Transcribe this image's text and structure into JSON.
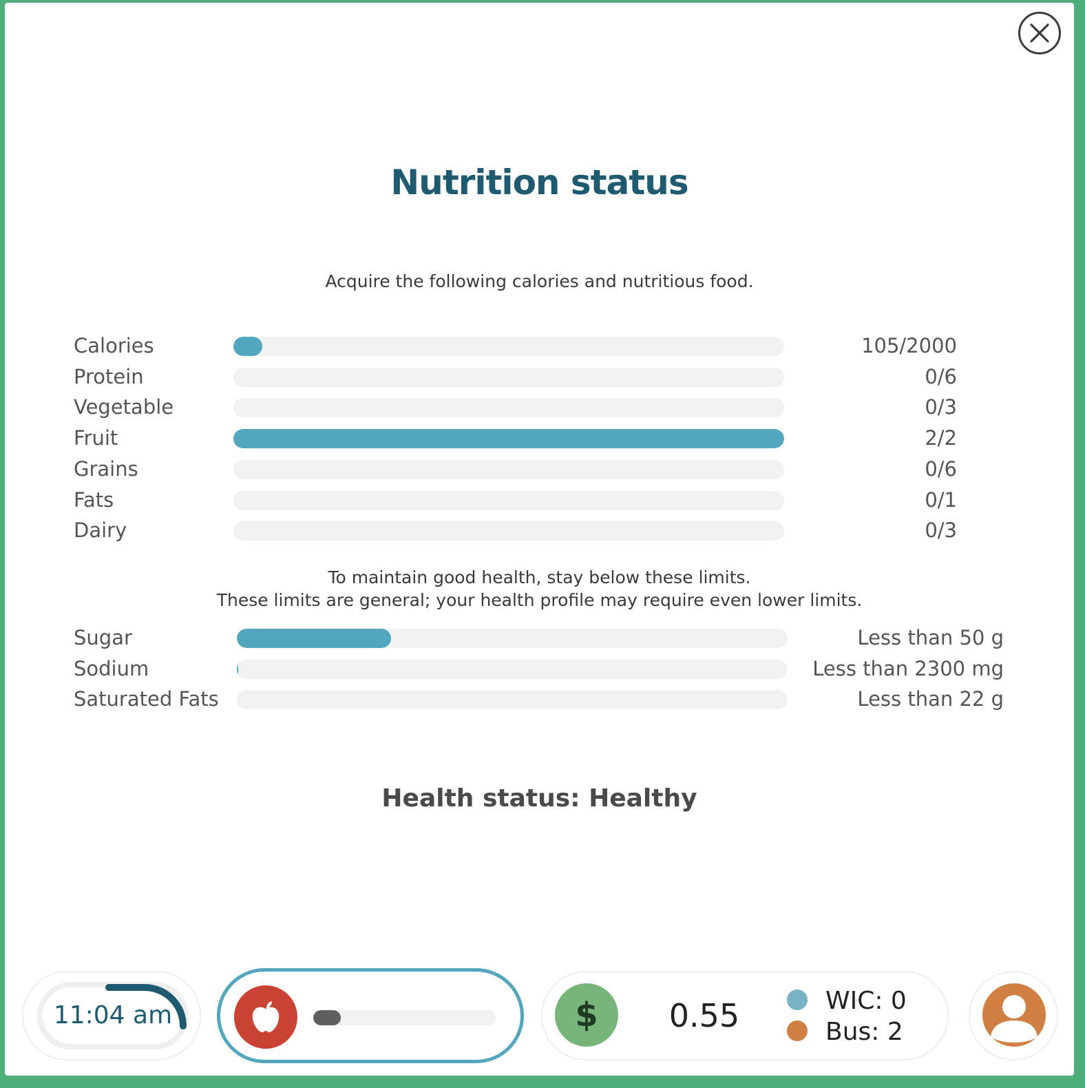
{
  "modal": {
    "title": "Nutrition status",
    "intro": "Acquire the following calories and nutritious food.",
    "nutrients": [
      {
        "label": "Calories",
        "current": 105,
        "target": 2000,
        "value": "105/2000"
      },
      {
        "label": "Protein",
        "current": 0,
        "target": 6,
        "value": "0/6"
      },
      {
        "label": "Vegetable",
        "current": 0,
        "target": 3,
        "value": "0/3"
      },
      {
        "label": "Fruit",
        "current": 2,
        "target": 2,
        "value": "2/2"
      },
      {
        "label": "Grains",
        "current": 0,
        "target": 6,
        "value": "0/6"
      },
      {
        "label": "Fats",
        "current": 0,
        "target": 1,
        "value": "0/1"
      },
      {
        "label": "Dairy",
        "current": 0,
        "target": 3,
        "value": "0/3"
      }
    ],
    "limits_note_1": "To maintain good health, stay below these limits.",
    "limits_note_2": "These limits are general; your health profile may require even lower limits.",
    "limits": [
      {
        "label": "Sugar",
        "fraction": 0.28,
        "value": "Less than 50 g"
      },
      {
        "label": "Sodium",
        "fraction": 0.002,
        "value": "Less than 2300 mg"
      },
      {
        "label": "Saturated Fats",
        "fraction": 0,
        "value": "Less than 22 g"
      }
    ],
    "health_status": "Health status: Healthy"
  },
  "hud": {
    "time": "11:04 am",
    "food_level": 0.15,
    "money": "0.55",
    "currency_symbol": "$",
    "wic": "WIC: 0",
    "bus": "Bus: 2"
  },
  "colors": {
    "accent": "#52a6bd",
    "title": "#1e5a70",
    "apple": "#c94234",
    "money": "#76b57a",
    "wic_dot": "#75b4c0",
    "bus_dot": "#d08042",
    "avatar": "#d08042",
    "background": "#4fae7a"
  },
  "icons": {
    "close": "close-icon",
    "apple": "apple-icon",
    "avatar": "user-icon"
  }
}
